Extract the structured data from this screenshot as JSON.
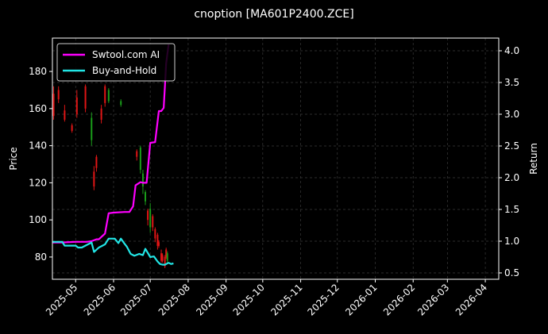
{
  "chart_data": {
    "type": "line",
    "title": "cnoption [MA601P2400.ZCE]",
    "ylabel": "Price",
    "y2label": "Return",
    "xlim": [
      "2025-04-12",
      "2026-04-12"
    ],
    "ylim": [
      68,
      198
    ],
    "y2lim": [
      0.4,
      4.2
    ],
    "x_ticks": [
      "2025-05-01",
      "2025-06-01",
      "2025-07-01",
      "2025-08-01",
      "2025-09-01",
      "2025-10-01",
      "2025-11-01",
      "2025-12-01",
      "2026-01-01",
      "2026-02-01",
      "2026-03-01",
      "2026-04-01"
    ],
    "x_tick_labels": [
      "2025-05",
      "2025-06",
      "2025-07",
      "2025-08",
      "2025-09",
      "2025-10",
      "2025-11",
      "2025-12",
      "2026-01",
      "2026-02",
      "2026-03",
      "2026-04"
    ],
    "y_ticks": [
      80,
      100,
      120,
      140,
      160,
      180
    ],
    "y2_ticks": [
      0.5,
      1.0,
      1.5,
      2.0,
      2.5,
      3.0,
      3.5,
      4.0
    ],
    "y2_tick_labels": [
      "0.5",
      "1.0",
      "1.5",
      "2.0",
      "2.5",
      "3.0",
      "3.5",
      "4.0"
    ],
    "grid": true,
    "legend": "top-left",
    "colors": {
      "background": "#000000",
      "up": "#1a9e1a",
      "down": "#e01515",
      "grid": "#3a3a3a"
    },
    "series": [
      {
        "name": "Swtool.com AI",
        "axis": "right",
        "color": "#ff00ff",
        "x": [
          "2025-04-12",
          "2025-04-20",
          "2025-05-01",
          "2025-05-10",
          "2025-05-14",
          "2025-05-18",
          "2025-05-20",
          "2025-05-25",
          "2025-05-28",
          "2025-06-01",
          "2025-06-10",
          "2025-06-14",
          "2025-06-17",
          "2025-06-19",
          "2025-06-23",
          "2025-06-25",
          "2025-06-28",
          "2025-07-01",
          "2025-07-05",
          "2025-07-08",
          "2025-07-10",
          "2025-07-12",
          "2025-07-13",
          "2025-07-14",
          "2025-07-16"
        ],
        "values": [
          0.98,
          0.98,
          0.99,
          0.99,
          1.0,
          1.03,
          1.03,
          1.12,
          1.44,
          1.45,
          1.46,
          1.46,
          1.55,
          1.88,
          1.93,
          1.92,
          1.92,
          2.55,
          2.56,
          3.05,
          3.05,
          3.1,
          3.45,
          3.8,
          4.1
        ]
      },
      {
        "name": "Buy-and-Hold",
        "axis": "right",
        "color": "#22e5e5",
        "x": [
          "2025-04-12",
          "2025-04-20",
          "2025-04-22",
          "2025-05-01",
          "2025-05-03",
          "2025-05-06",
          "2025-05-14",
          "2025-05-16",
          "2025-05-20",
          "2025-05-25",
          "2025-05-28",
          "2025-06-02",
          "2025-06-05",
          "2025-06-07",
          "2025-06-10",
          "2025-06-12",
          "2025-06-15",
          "2025-06-18",
          "2025-06-22",
          "2025-06-25",
          "2025-06-27",
          "2025-07-01",
          "2025-07-04",
          "2025-07-07",
          "2025-07-09",
          "2025-07-11",
          "2025-07-13",
          "2025-07-16",
          "2025-07-18",
          "2025-07-20"
        ],
        "values": [
          0.99,
          0.99,
          0.93,
          0.93,
          0.9,
          0.9,
          0.98,
          0.83,
          0.9,
          0.95,
          1.04,
          1.04,
          0.97,
          1.04,
          0.96,
          0.91,
          0.8,
          0.77,
          0.8,
          0.78,
          0.88,
          0.75,
          0.76,
          0.68,
          0.64,
          0.63,
          0.63,
          0.66,
          0.64,
          0.65
        ]
      }
    ],
    "candles": [
      {
        "x": "2025-04-13",
        "o": 168,
        "c": 156,
        "h": 172,
        "l": 154
      },
      {
        "x": "2025-04-17",
        "o": 170,
        "c": 165,
        "h": 172,
        "l": 163
      },
      {
        "x": "2025-04-22",
        "o": 159,
        "c": 154,
        "h": 162,
        "l": 153
      },
      {
        "x": "2025-04-28",
        "o": 151,
        "c": 148,
        "h": 152,
        "l": 147
      },
      {
        "x": "2025-05-02",
        "o": 166,
        "c": 157,
        "h": 170,
        "l": 155
      },
      {
        "x": "2025-05-09",
        "o": 172,
        "c": 160,
        "h": 173,
        "l": 158
      },
      {
        "x": "2025-05-14",
        "o": 143,
        "c": 155,
        "h": 158,
        "l": 140
      },
      {
        "x": "2025-05-16",
        "o": 126,
        "c": 118,
        "h": 129,
        "l": 116
      },
      {
        "x": "2025-05-18",
        "o": 134,
        "c": 128,
        "h": 135,
        "l": 126
      },
      {
        "x": "2025-05-22",
        "o": 160,
        "c": 154,
        "h": 162,
        "l": 152
      },
      {
        "x": "2025-05-25",
        "o": 172,
        "c": 163,
        "h": 173,
        "l": 161
      },
      {
        "x": "2025-05-28",
        "o": 164,
        "c": 170,
        "h": 171,
        "l": 163
      },
      {
        "x": "2025-06-07",
        "o": 162,
        "c": 164,
        "h": 165,
        "l": 161
      },
      {
        "x": "2025-06-20",
        "o": 137,
        "c": 134,
        "h": 138,
        "l": 132
      },
      {
        "x": "2025-06-23",
        "o": 127,
        "c": 139,
        "h": 140,
        "l": 125
      },
      {
        "x": "2025-06-25",
        "o": 118,
        "c": 125,
        "h": 127,
        "l": 114
      },
      {
        "x": "2025-06-27",
        "o": 110,
        "c": 115,
        "h": 116,
        "l": 108
      },
      {
        "x": "2025-06-29",
        "o": 105,
        "c": 100,
        "h": 106,
        "l": 97
      },
      {
        "x": "2025-07-01",
        "o": 96,
        "c": 106,
        "h": 109,
        "l": 93
      },
      {
        "x": "2025-07-03",
        "o": 102,
        "c": 96,
        "h": 103,
        "l": 94
      },
      {
        "x": "2025-07-05",
        "o": 95,
        "c": 90,
        "h": 96,
        "l": 88
      },
      {
        "x": "2025-07-07",
        "o": 92,
        "c": 86,
        "h": 93,
        "l": 84
      },
      {
        "x": "2025-07-08",
        "o": 88,
        "c": 86,
        "h": 89,
        "l": 85
      },
      {
        "x": "2025-07-10",
        "o": 82,
        "c": 78,
        "h": 84,
        "l": 77
      },
      {
        "x": "2025-07-11",
        "o": 81,
        "c": 78,
        "h": 82,
        "l": 77
      },
      {
        "x": "2025-07-13",
        "o": 80,
        "c": 75,
        "h": 81,
        "l": 74
      },
      {
        "x": "2025-07-14",
        "o": 84,
        "c": 80,
        "h": 85,
        "l": 79
      },
      {
        "x": "2025-07-15",
        "o": 78,
        "c": 82,
        "h": 83,
        "l": 77
      }
    ]
  }
}
